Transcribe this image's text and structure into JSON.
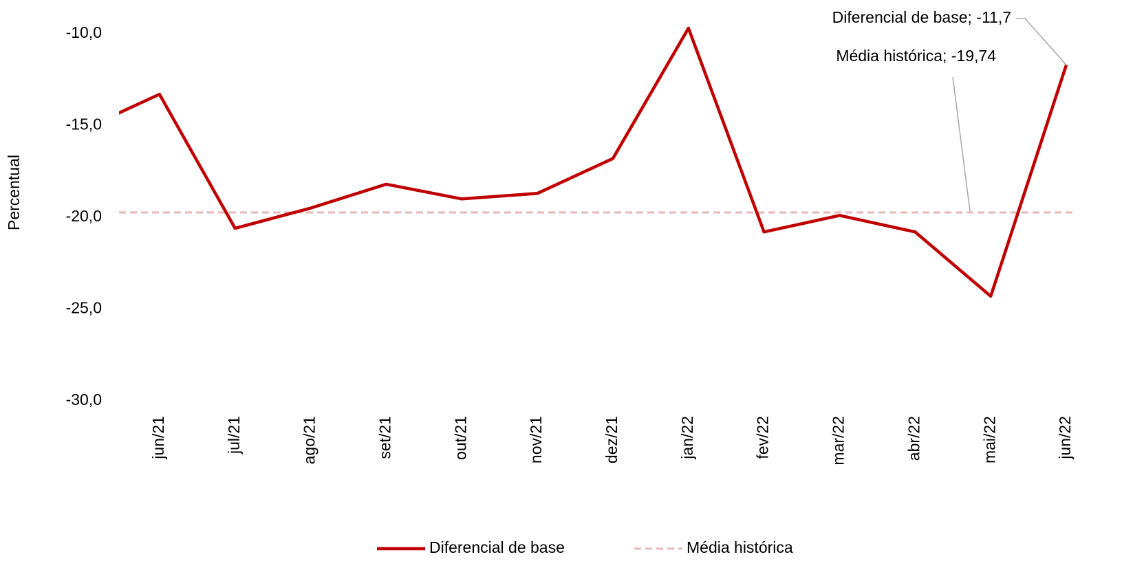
{
  "chart_data": {
    "type": "line",
    "y_label": "Percentual",
    "categories": [
      null,
      "jun/21",
      "jul/21",
      "ago/21",
      "set/21",
      "out/21",
      "nov/21",
      "dez/21",
      "jan/22",
      "fev/22",
      "mar/22",
      "abr/22",
      "mai/22",
      "jun/22"
    ],
    "series": [
      {
        "name": "Diferencial de base",
        "color": "#c00000",
        "values": [
          -15.2,
          -13.3,
          -20.6,
          -19.5,
          -18.2,
          -19.0,
          -18.7,
          -16.8,
          -9.7,
          -20.8,
          -19.9,
          -20.8,
          -24.3,
          -11.7
        ]
      }
    ],
    "reference_line": {
      "name": "Média histórica",
      "value": -19.74,
      "color": "#e6b8b7",
      "dashed": true
    },
    "annotations": [
      {
        "text": "Diferencial de base; -11,7"
      },
      {
        "text": "Média histórica; -19,74"
      }
    ],
    "ylim": [
      -30,
      -8
    ],
    "yticks": [
      {
        "value": -10,
        "label": "-10,0"
      },
      {
        "value": -15,
        "label": "-15,0"
      },
      {
        "value": -20,
        "label": "-20,0"
      },
      {
        "value": -25,
        "label": "-25,0"
      },
      {
        "value": -30,
        "label": "-30,0"
      }
    ],
    "grid": false,
    "legend": "bottom"
  }
}
